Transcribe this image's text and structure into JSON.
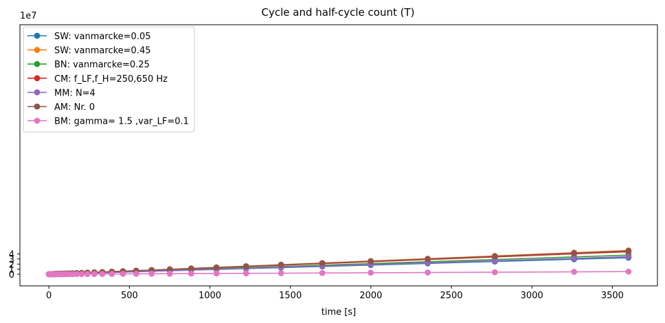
{
  "chart_data": {
    "type": "line",
    "title": "Cycle and half-cycle count (T)",
    "xlabel": "time [s]",
    "ylabel": "",
    "y_offset_label": "1e7",
    "xlim": [
      -180,
      3780
    ],
    "ylim": [
      -2.3,
      49.2
    ],
    "x_ticks": [
      0,
      500,
      1000,
      1500,
      2000,
      2500,
      3000,
      3500
    ],
    "y_ticks": [
      0,
      1,
      2,
      3,
      4
    ],
    "y_unit_scale": 10000000,
    "grid": false,
    "legend_position": "top-left",
    "x": [
      0,
      1.5,
      3,
      5,
      7,
      10,
      13,
      17,
      22,
      28,
      35,
      43,
      52,
      63,
      75,
      89,
      105,
      124,
      146,
      172,
      203,
      239,
      282,
      332,
      391,
      460,
      542,
      638,
      751,
      884,
      1041,
      1225,
      1442,
      1698,
      1999,
      2353,
      2770,
      3262,
      3600
    ],
    "series": [
      {
        "name": "SW: vanmarcke=0.05",
        "color": "#1f77b4",
        "rate": 9060
      },
      {
        "name": "SW: vanmarcke=0.45",
        "color": "#ff7f0e",
        "rate": 13030
      },
      {
        "name": "BN: vanmarcke=0.25",
        "color": "#2ca02c",
        "rate": 10470
      },
      {
        "name": "CM: f_LF,f_H=250,650 Hz",
        "color": "#d62728",
        "rate": 12330
      },
      {
        "name": "MM: N=4",
        "color": "#9467bd",
        "rate": 9580
      },
      {
        "name": "AM: Nr. 0",
        "color": "#8c564b",
        "rate": 12780
      },
      {
        "name": "BM: gamma= 1.5 ,var_LF=0.1",
        "color": "#e377c2",
        "rate": 1440
      }
    ]
  }
}
